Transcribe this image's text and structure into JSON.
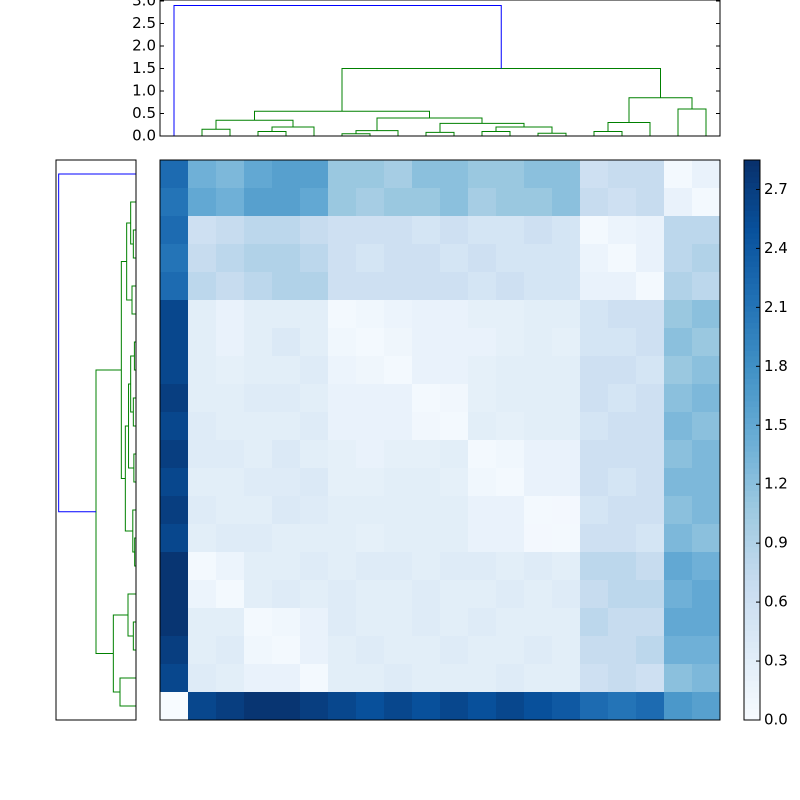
{
  "chart_data": [
    {
      "type": "dendrogram",
      "orientation": "top",
      "hlim": [
        0,
        3.0
      ],
      "leaflim": [
        0,
        200
      ],
      "yticks": [
        {
          "value": 0,
          "label": "0.0"
        },
        0.5,
        {
          "value": 1,
          "label": "1.0"
        },
        1.5,
        {
          "value": 2,
          "label": "2.0"
        },
        2.5,
        {
          "value": 3,
          "label": "3.0"
        }
      ],
      "links": [
        {
          "leaf_pos": [
            15,
            15,
            25,
            25
          ],
          "height": [
            0,
            0.15,
            0.15,
            0
          ],
          "color": "#008000"
        },
        {
          "leaf_pos": [
            35,
            35,
            45,
            45
          ],
          "height": [
            0,
            0.1,
            0.1,
            0
          ],
          "color": "#008000"
        },
        {
          "leaf_pos": [
            40,
            40,
            55,
            55
          ],
          "height": [
            0.1,
            0.2,
            0.2,
            0
          ],
          "color": "#008000"
        },
        {
          "leaf_pos": [
            20,
            20,
            47.5,
            47.5
          ],
          "height": [
            0.15,
            0.35,
            0.35,
            0.2
          ],
          "color": "#008000"
        },
        {
          "leaf_pos": [
            65,
            65,
            75,
            75
          ],
          "height": [
            0,
            0.05,
            0.05,
            0
          ],
          "color": "#008000"
        },
        {
          "leaf_pos": [
            70,
            70,
            85,
            85
          ],
          "height": [
            0.05,
            0.12,
            0.12,
            0
          ],
          "color": "#008000"
        },
        {
          "leaf_pos": [
            95,
            95,
            105,
            105
          ],
          "height": [
            0,
            0.08,
            0.08,
            0
          ],
          "color": "#008000"
        },
        {
          "leaf_pos": [
            115,
            115,
            125,
            125
          ],
          "height": [
            0,
            0.1,
            0.1,
            0
          ],
          "color": "#008000"
        },
        {
          "leaf_pos": [
            135,
            135,
            145,
            145
          ],
          "height": [
            0,
            0.06,
            0.06,
            0
          ],
          "color": "#008000"
        },
        {
          "leaf_pos": [
            120,
            120,
            140,
            140
          ],
          "height": [
            0.1,
            0.2,
            0.2,
            0.06
          ],
          "color": "#008000"
        },
        {
          "leaf_pos": [
            100,
            100,
            130,
            130
          ],
          "height": [
            0.08,
            0.28,
            0.28,
            0.2
          ],
          "color": "#008000"
        },
        {
          "leaf_pos": [
            77.5,
            77.5,
            115,
            115
          ],
          "height": [
            0.12,
            0.4,
            0.4,
            0.28
          ],
          "color": "#008000"
        },
        {
          "leaf_pos": [
            33.75,
            33.75,
            96.25,
            96.25
          ],
          "height": [
            0.35,
            0.55,
            0.55,
            0.4
          ],
          "color": "#008000"
        },
        {
          "leaf_pos": [
            155,
            155,
            165,
            165
          ],
          "height": [
            0,
            0.1,
            0.1,
            0
          ],
          "color": "#008000"
        },
        {
          "leaf_pos": [
            160,
            160,
            175,
            175
          ],
          "height": [
            0.1,
            0.3,
            0.3,
            0
          ],
          "color": "#008000"
        },
        {
          "leaf_pos": [
            185,
            185,
            195,
            195
          ],
          "height": [
            0,
            0.6,
            0.6,
            0
          ],
          "color": "#008000"
        },
        {
          "leaf_pos": [
            167.5,
            167.5,
            190,
            190
          ],
          "height": [
            0.3,
            0.85,
            0.85,
            0.6
          ],
          "color": "#008000"
        },
        {
          "leaf_pos": [
            65,
            65,
            178.75,
            178.75
          ],
          "height": [
            0.55,
            1.5,
            1.5,
            0.85
          ],
          "color": "#008000"
        },
        {
          "leaf_pos": [
            5,
            5,
            121.875,
            121.875
          ],
          "height": [
            0,
            2.9,
            2.9,
            1.5
          ],
          "color": "#0000ff"
        }
      ]
    },
    {
      "type": "dendrogram",
      "orientation": "left",
      "hlim": [
        0,
        3.0
      ],
      "leaflim": [
        0,
        200
      ],
      "links": [
        {
          "leaf_pos": [
            5,
            5,
            15,
            15
          ],
          "height": [
            0,
            0.6,
            0.6,
            0
          ],
          "color": "#008000"
        },
        {
          "leaf_pos": [
            25,
            25,
            35,
            35
          ],
          "height": [
            0,
            0.1,
            0.1,
            0
          ],
          "color": "#008000"
        },
        {
          "leaf_pos": [
            30,
            30,
            45,
            45
          ],
          "height": [
            0.1,
            0.3,
            0.3,
            0
          ],
          "color": "#008000"
        },
        {
          "leaf_pos": [
            10,
            10,
            37.5,
            37.5
          ],
          "height": [
            0.6,
            0.85,
            0.85,
            0.3
          ],
          "color": "#008000"
        },
        {
          "leaf_pos": [
            55,
            55,
            65,
            65
          ],
          "height": [
            0,
            0.05,
            0.05,
            0
          ],
          "color": "#008000"
        },
        {
          "leaf_pos": [
            60,
            60,
            75,
            75
          ],
          "height": [
            0.05,
            0.12,
            0.12,
            0
          ],
          "color": "#008000"
        },
        {
          "leaf_pos": [
            85,
            85,
            95,
            95
          ],
          "height": [
            0,
            0.08,
            0.08,
            0
          ],
          "color": "#008000"
        },
        {
          "leaf_pos": [
            105,
            105,
            115,
            115
          ],
          "height": [
            0,
            0.1,
            0.1,
            0
          ],
          "color": "#008000"
        },
        {
          "leaf_pos": [
            125,
            125,
            135,
            135
          ],
          "height": [
            0,
            0.06,
            0.06,
            0
          ],
          "color": "#008000"
        },
        {
          "leaf_pos": [
            110,
            110,
            130,
            130
          ],
          "height": [
            0.1,
            0.2,
            0.2,
            0.06
          ],
          "color": "#008000"
        },
        {
          "leaf_pos": [
            90,
            90,
            120,
            120
          ],
          "height": [
            0.08,
            0.28,
            0.28,
            0.2
          ],
          "color": "#008000"
        },
        {
          "leaf_pos": [
            67.5,
            67.5,
            105,
            105
          ],
          "height": [
            0.12,
            0.4,
            0.4,
            0.28
          ],
          "color": "#008000"
        },
        {
          "leaf_pos": [
            145,
            145,
            155,
            155
          ],
          "height": [
            0,
            0.15,
            0.15,
            0
          ],
          "color": "#008000"
        },
        {
          "leaf_pos": [
            165,
            165,
            175,
            175
          ],
          "height": [
            0,
            0.1,
            0.1,
            0
          ],
          "color": "#008000"
        },
        {
          "leaf_pos": [
            170,
            170,
            185,
            185
          ],
          "height": [
            0.1,
            0.2,
            0.2,
            0
          ],
          "color": "#008000"
        },
        {
          "leaf_pos": [
            150,
            150,
            177.5,
            177.5
          ],
          "height": [
            0.15,
            0.35,
            0.35,
            0.2
          ],
          "color": "#008000"
        },
        {
          "leaf_pos": [
            86.25,
            86.25,
            163.75,
            163.75
          ],
          "height": [
            0.4,
            0.55,
            0.55,
            0.35
          ],
          "color": "#008000"
        },
        {
          "leaf_pos": [
            23.75,
            23.75,
            125,
            125
          ],
          "height": [
            0.85,
            1.5,
            1.5,
            0.55
          ],
          "color": "#008000"
        },
        {
          "leaf_pos": [
            74.375,
            74.375,
            195,
            195
          ],
          "height": [
            1.5,
            2.9,
            2.9,
            0
          ],
          "color": "#0000ff"
        }
      ]
    },
    {
      "type": "heatmap",
      "clim": [
        0,
        2.85
      ],
      "colormap": [
        "#f7fbff",
        "#deebf7",
        "#c6dbef",
        "#9ecae1",
        "#6baed6",
        "#4292c6",
        "#2171b5",
        "#08519c",
        "#08306b"
      ],
      "cticks": [
        {
          "value": 0,
          "label": "0.0"
        },
        0.3,
        0.6,
        0.9,
        1.2,
        1.5,
        1.8,
        2.1,
        2.4,
        2.7
      ],
      "matrix": [
        [
          2.2,
          1.4,
          1.3,
          1.5,
          1.6,
          1.6,
          1.1,
          1.1,
          1.0,
          1.2,
          1.2,
          1.1,
          1.1,
          1.2,
          1.2,
          0.6,
          0.7,
          0.7,
          0.05,
          0.2
        ],
        [
          2.1,
          1.5,
          1.4,
          1.6,
          1.6,
          1.5,
          1.1,
          1.0,
          1.1,
          1.1,
          1.2,
          1.0,
          1.1,
          1.1,
          1.2,
          0.7,
          0.6,
          0.7,
          0.2,
          0.05
        ],
        [
          2.2,
          0.6,
          0.7,
          0.8,
          0.8,
          0.7,
          0.6,
          0.6,
          0.6,
          0.5,
          0.6,
          0.5,
          0.5,
          0.6,
          0.5,
          0.05,
          0.15,
          0.2,
          0.8,
          0.8
        ],
        [
          2.1,
          0.7,
          0.8,
          0.9,
          0.9,
          0.8,
          0.6,
          0.5,
          0.6,
          0.6,
          0.5,
          0.6,
          0.5,
          0.5,
          0.5,
          0.15,
          0.05,
          0.2,
          0.8,
          0.9
        ],
        [
          2.2,
          0.8,
          0.7,
          0.8,
          0.9,
          0.9,
          0.6,
          0.6,
          0.6,
          0.6,
          0.6,
          0.5,
          0.6,
          0.5,
          0.5,
          0.2,
          0.2,
          0.05,
          0.9,
          0.8
        ],
        [
          2.6,
          0.3,
          0.2,
          0.3,
          0.3,
          0.3,
          0.05,
          0.1,
          0.15,
          0.2,
          0.2,
          0.25,
          0.25,
          0.3,
          0.3,
          0.5,
          0.6,
          0.6,
          1.1,
          1.2
        ],
        [
          2.6,
          0.3,
          0.2,
          0.3,
          0.4,
          0.3,
          0.1,
          0.05,
          0.12,
          0.2,
          0.2,
          0.2,
          0.25,
          0.3,
          0.25,
          0.5,
          0.5,
          0.6,
          1.2,
          1.1
        ],
        [
          2.6,
          0.3,
          0.25,
          0.3,
          0.3,
          0.35,
          0.15,
          0.12,
          0.05,
          0.2,
          0.2,
          0.25,
          0.3,
          0.3,
          0.3,
          0.6,
          0.6,
          0.5,
          1.1,
          1.2
        ],
        [
          2.7,
          0.3,
          0.3,
          0.35,
          0.35,
          0.3,
          0.2,
          0.2,
          0.2,
          0.05,
          0.08,
          0.25,
          0.3,
          0.3,
          0.3,
          0.6,
          0.5,
          0.6,
          1.2,
          1.3
        ],
        [
          2.6,
          0.35,
          0.3,
          0.3,
          0.3,
          0.35,
          0.2,
          0.2,
          0.2,
          0.08,
          0.05,
          0.3,
          0.25,
          0.3,
          0.3,
          0.5,
          0.6,
          0.6,
          1.3,
          1.2
        ],
        [
          2.7,
          0.35,
          0.35,
          0.3,
          0.4,
          0.3,
          0.25,
          0.2,
          0.25,
          0.25,
          0.3,
          0.05,
          0.1,
          0.2,
          0.2,
          0.6,
          0.6,
          0.6,
          1.2,
          1.3
        ],
        [
          2.6,
          0.3,
          0.3,
          0.35,
          0.35,
          0.4,
          0.25,
          0.25,
          0.3,
          0.3,
          0.25,
          0.1,
          0.05,
          0.2,
          0.2,
          0.6,
          0.5,
          0.6,
          1.3,
          1.3
        ],
        [
          2.7,
          0.35,
          0.3,
          0.3,
          0.4,
          0.35,
          0.3,
          0.3,
          0.3,
          0.3,
          0.3,
          0.2,
          0.2,
          0.05,
          0.06,
          0.5,
          0.6,
          0.6,
          1.2,
          1.3
        ],
        [
          2.6,
          0.3,
          0.35,
          0.35,
          0.3,
          0.3,
          0.3,
          0.25,
          0.3,
          0.3,
          0.3,
          0.2,
          0.2,
          0.06,
          0.05,
          0.6,
          0.6,
          0.5,
          1.3,
          1.2
        ],
        [
          2.8,
          0.05,
          0.15,
          0.3,
          0.3,
          0.35,
          0.3,
          0.35,
          0.35,
          0.3,
          0.35,
          0.35,
          0.3,
          0.35,
          0.3,
          0.8,
          0.8,
          0.7,
          1.5,
          1.4
        ],
        [
          2.8,
          0.15,
          0.05,
          0.3,
          0.35,
          0.3,
          0.35,
          0.3,
          0.3,
          0.35,
          0.3,
          0.3,
          0.35,
          0.3,
          0.35,
          0.7,
          0.8,
          0.8,
          1.4,
          1.5
        ],
        [
          2.8,
          0.3,
          0.3,
          0.05,
          0.1,
          0.2,
          0.35,
          0.3,
          0.3,
          0.35,
          0.3,
          0.35,
          0.3,
          0.3,
          0.3,
          0.8,
          0.7,
          0.7,
          1.5,
          1.5
        ],
        [
          2.7,
          0.3,
          0.35,
          0.1,
          0.05,
          0.2,
          0.3,
          0.35,
          0.3,
          0.3,
          0.35,
          0.3,
          0.3,
          0.35,
          0.3,
          0.7,
          0.7,
          0.8,
          1.4,
          1.4
        ],
        [
          2.6,
          0.35,
          0.3,
          0.2,
          0.2,
          0.05,
          0.3,
          0.3,
          0.35,
          0.3,
          0.3,
          0.3,
          0.35,
          0.3,
          0.3,
          0.6,
          0.7,
          0.6,
          1.2,
          1.3
        ],
        [
          0.0,
          2.6,
          2.7,
          2.8,
          2.8,
          2.7,
          2.6,
          2.5,
          2.6,
          2.5,
          2.6,
          2.5,
          2.6,
          2.5,
          2.4,
          2.2,
          2.1,
          2.2,
          1.7,
          1.6
        ]
      ]
    }
  ]
}
